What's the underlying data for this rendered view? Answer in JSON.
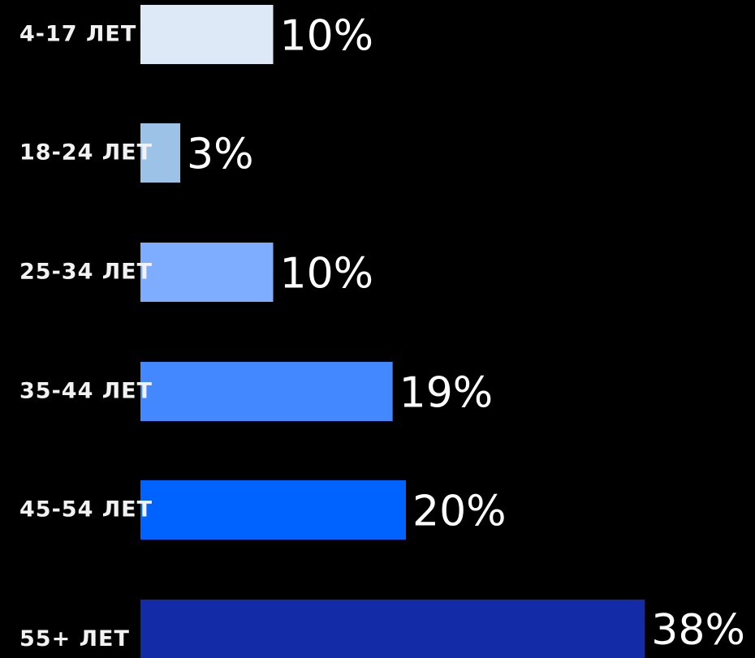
{
  "chart_data": {
    "type": "bar",
    "orientation": "horizontal",
    "categories": [
      "4-17 ЛЕТ",
      "18-24 ЛЕТ",
      "25-34 ЛЕТ",
      "35-44 ЛЕТ",
      "45-54 ЛЕТ",
      "55+ ЛЕТ"
    ],
    "values": [
      10,
      3,
      10,
      19,
      20,
      38
    ],
    "value_labels": [
      "10%",
      "3%",
      "10%",
      "19%",
      "20%",
      "38%"
    ],
    "bar_colors": [
      "#dde9f6",
      "#9cc3e7",
      "#7eacff",
      "#4488ff",
      "#0062ff",
      "#142ba8"
    ],
    "title": "",
    "xlabel": "",
    "ylabel": "",
    "grid": false,
    "legend": false
  }
}
